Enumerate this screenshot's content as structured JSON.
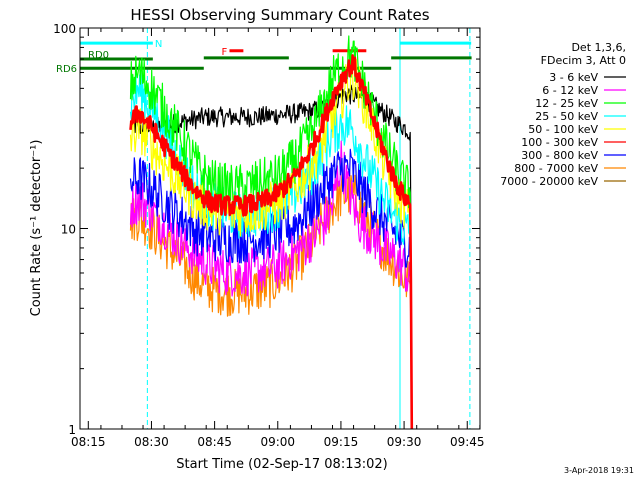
{
  "chart_data": {
    "type": "line",
    "title": "HESSI Observing Summary Count Rates",
    "xlabel": "Start Time (02-Sep-17 08:13:02)",
    "ylabel": "Count Rate (s⁻¹ detector⁻¹)",
    "x_unit": "minutes after 08:13:02",
    "xlim": [
      0,
      95
    ],
    "ylim": [
      1,
      100
    ],
    "yscale": "log",
    "xticks": [
      {
        "x": 1.97,
        "label": "08:15"
      },
      {
        "x": 16.97,
        "label": "08:30"
      },
      {
        "x": 31.97,
        "label": "08:45"
      },
      {
        "x": 46.97,
        "label": "09:00"
      },
      {
        "x": 61.97,
        "label": "09:15"
      },
      {
        "x": 76.97,
        "label": "09:30"
      },
      {
        "x": 91.97,
        "label": "09:45"
      }
    ],
    "yticks": [
      {
        "y": 1,
        "label": "1"
      },
      {
        "y": 10,
        "label": "10"
      },
      {
        "y": 100,
        "label": "100"
      }
    ],
    "legend": {
      "position": "right",
      "header": [
        "Det 1,3,6,",
        "FDecim 3, Att 0"
      ]
    },
    "series": [
      {
        "name": "3 - 6 keV",
        "color": "#000000",
        "x": [
          12,
          14,
          18,
          24,
          30,
          36,
          42,
          48,
          54,
          58,
          60,
          63,
          65,
          68,
          72,
          75,
          77,
          78.5,
          78.8
        ],
        "y": [
          33,
          32,
          32,
          34,
          36,
          36,
          36,
          37,
          38,
          40,
          43,
          47,
          46,
          44,
          38,
          34,
          32,
          30,
          1
        ]
      },
      {
        "name": "6 - 12 keV",
        "color": "#ff00ff",
        "x": [
          12,
          14,
          16,
          19,
          23,
          27,
          31,
          35,
          39,
          43,
          47,
          51,
          55,
          58,
          60,
          61,
          62,
          63,
          64,
          65,
          66,
          69,
          72,
          75,
          77,
          78.5,
          78.8
        ],
        "y": [
          13,
          14,
          13,
          11,
          9,
          7.5,
          6.5,
          6,
          6,
          6.2,
          6.5,
          7.5,
          9,
          10.5,
          13,
          17,
          22,
          18,
          15,
          13,
          11,
          9.5,
          8,
          7,
          6.5,
          5,
          2.5
        ]
      },
      {
        "name": "12 - 25 keV",
        "color": "#00ff00",
        "x": [
          12,
          14,
          17,
          21,
          25,
          28,
          31,
          35,
          39,
          43,
          47,
          51,
          55,
          58,
          60,
          62,
          64,
          65,
          66,
          68,
          70,
          72,
          74,
          76,
          78.5,
          78.8
        ],
        "y": [
          52,
          60,
          50,
          36,
          26,
          20,
          17,
          16,
          16,
          17,
          18,
          22,
          30,
          42,
          55,
          65,
          72,
          70,
          62,
          48,
          36,
          28,
          22,
          18,
          15,
          1
        ]
      },
      {
        "name": "25 - 50 keV",
        "color": "#00ffff",
        "x": [
          12,
          14,
          17,
          21,
          25,
          28,
          31,
          35,
          39,
          43,
          47,
          51,
          55,
          58,
          60,
          62,
          64,
          65,
          66,
          68,
          70,
          72,
          74,
          76,
          78.5,
          78.8
        ],
        "y": [
          42,
          50,
          40,
          28,
          19,
          15,
          13,
          12,
          11.5,
          12,
          13,
          15,
          19,
          25,
          30,
          33,
          33,
          30,
          27,
          21,
          17,
          14,
          12,
          10.5,
          9.5,
          1
        ]
      },
      {
        "name": "50 - 100 keV",
        "color": "#ffff00",
        "x": [
          12,
          14,
          17,
          21,
          25,
          28,
          31,
          35,
          39,
          43,
          47,
          51,
          55,
          58,
          60,
          62,
          64,
          65,
          66,
          68,
          70,
          72,
          74,
          76,
          78.5,
          78.8
        ],
        "y": [
          28,
          32,
          26,
          20,
          16,
          13.5,
          12.5,
          12,
          12,
          12.5,
          13.5,
          16,
          21,
          28,
          36,
          45,
          55,
          58,
          52,
          40,
          30,
          22,
          17,
          14,
          12,
          1
        ]
      },
      {
        "name": "100 - 300 keV",
        "color": "#ff0000",
        "x": [
          12,
          14,
          17,
          21,
          25,
          28,
          31,
          35,
          39,
          43,
          47,
          51,
          55,
          58,
          60,
          62,
          64,
          65,
          66,
          68,
          70,
          72,
          74,
          76,
          78.5,
          78.8
        ],
        "y": [
          34,
          38,
          32,
          24,
          18,
          15,
          13.5,
          13,
          13,
          13.5,
          15,
          18,
          25,
          35,
          45,
          55,
          64,
          66,
          58,
          44,
          33,
          25,
          19,
          15.5,
          13,
          1
        ]
      },
      {
        "name": "300 - 800 keV",
        "color": "#0000ff",
        "x": [
          12,
          14,
          17,
          21,
          25,
          28,
          31,
          35,
          39,
          43,
          47,
          51,
          55,
          58,
          60,
          62,
          64,
          65,
          66,
          68,
          70,
          72,
          74,
          76,
          78.5,
          78.8
        ],
        "y": [
          17,
          18,
          16,
          13,
          11,
          9.5,
          9,
          8.8,
          8.8,
          9,
          9.5,
          10.5,
          13,
          16,
          18.5,
          20,
          20,
          19,
          17,
          14.5,
          12.5,
          11,
          10,
          9,
          8,
          1
        ]
      },
      {
        "name": "800 - 7000 keV",
        "color": "#ff8800",
        "x": [
          12,
          14,
          17,
          21,
          25,
          28,
          31,
          35,
          39,
          43,
          47,
          51,
          55,
          58,
          60,
          62,
          64,
          65,
          66,
          68,
          70,
          72,
          74,
          76,
          78.5,
          78.8
        ],
        "y": [
          11,
          11.5,
          10,
          8,
          6.5,
          5.5,
          5,
          4.8,
          4.8,
          5,
          5.5,
          6.5,
          8.5,
          11,
          13,
          14.5,
          15,
          14.5,
          13.5,
          11.5,
          9.5,
          8,
          7,
          6,
          5.2,
          1
        ]
      },
      {
        "name": "7000 - 20000 keV",
        "color": "#996600",
        "x": [],
        "y": []
      }
    ],
    "annotations": [
      {
        "text": "N",
        "color": "#00ffff",
        "x_range": [
          0,
          17.3
        ],
        "y": 84
      },
      {
        "text": "RD0",
        "color": "#007700",
        "x_range": [
          0,
          17.3
        ],
        "y": 70
      },
      {
        "text": "RD6",
        "color": "#007700",
        "x_range": [
          0,
          29.4
        ],
        "y": 63
      },
      {
        "text": "F",
        "color": "#ff0000",
        "x_range": [
          35.5,
          38.8
        ],
        "y": 77
      },
      {
        "color": "#ff0000",
        "x_range": [
          60,
          68
        ],
        "y": 77
      },
      {
        "color": "#007700",
        "x_range": [
          29.4,
          49.6
        ],
        "y": 71
      },
      {
        "color": "#007700",
        "x_range": [
          49.6,
          73.9
        ],
        "y": 63
      },
      {
        "color": "#007700",
        "x_range": [
          73.9,
          93
        ],
        "y": 71
      },
      {
        "color": "#00ffff",
        "x_range": [
          76,
          92.9
        ],
        "y": 84
      }
    ],
    "vlines": [
      {
        "x": 0,
        "color": "#00ffff",
        "style": "solid"
      },
      {
        "x": 16.0,
        "color": "#00ffff",
        "style": "dashed"
      },
      {
        "x": 76.0,
        "color": "#00ffff",
        "style": "solid"
      },
      {
        "x": 92.6,
        "color": "#00ffff",
        "style": "dashed"
      }
    ]
  },
  "footer": {
    "timestamp": "3-Apr-2018 19:31"
  }
}
